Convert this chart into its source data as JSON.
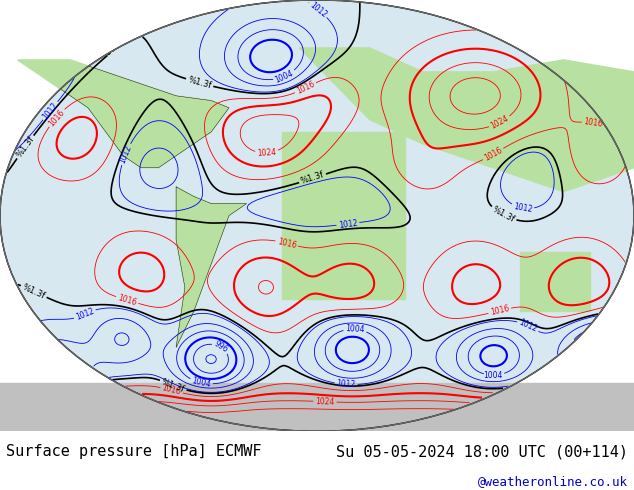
{
  "title_left": "Surface pressure [hPa] ECMWF",
  "title_right": "Su 05-05-2024 18:00 UTC (00+114)",
  "credit": "@weatheronline.co.uk",
  "credit_color": "#0000cc",
  "background_color": "#ffffff",
  "map_bg_color": "#d8e8f0",
  "land_color": "#b8e0a0",
  "land_border_color": "#000000",
  "contour_low_color": "#0000ff",
  "contour_high_color": "#ff0000",
  "contour_normal_color": "#000000",
  "contour_thick_color": "#000000",
  "label_fontsize": 7,
  "footer_fontsize": 11
}
